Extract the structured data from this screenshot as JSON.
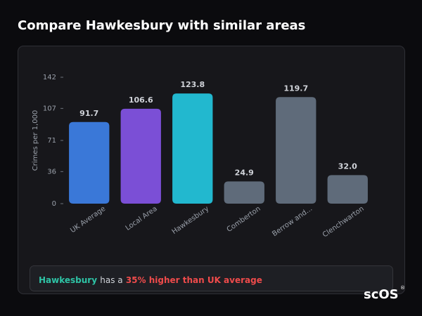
{
  "title": "Compare Hawkesbury with similar areas",
  "chart_data": {
    "type": "bar",
    "y_label": "Crimes per 1,000",
    "categories": [
      "UK Average",
      "Local Area",
      "Hawkesbury",
      "Comberton",
      "Berrow and...",
      "Clenchwarton"
    ],
    "values": [
      91.7,
      106.6,
      123.8,
      24.9,
      119.7,
      32.0
    ],
    "value_labels": [
      "91.7",
      "106.6",
      "123.8",
      "24.9",
      "119.7",
      "32.0"
    ],
    "colors": [
      "#3a78d8",
      "#7b4fd6",
      "#22b8cf",
      "#5f6b7a",
      "#5f6b7a",
      "#5f6b7a"
    ],
    "ylim": [
      0,
      142
    ],
    "yticks": [
      0,
      36,
      71,
      107,
      142
    ]
  },
  "note": {
    "area": "Hawkesbury",
    "text": "has a",
    "highlight": "35% higher than UK average"
  },
  "logo": {
    "text": "scOS",
    "mark": "®"
  }
}
